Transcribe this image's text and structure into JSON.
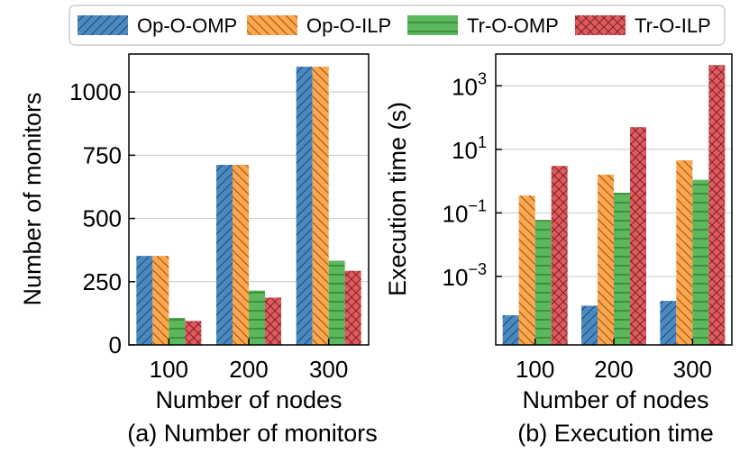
{
  "legend": [
    {
      "name": "Op-O-OMP",
      "color": "#4a8ac0",
      "hatch": "diag-fwd",
      "hatch_color": "#1b3d6b"
    },
    {
      "name": "Op-O-ILP",
      "color": "#ffa64d",
      "hatch": "diag-back",
      "hatch_color": "#7a4a14"
    },
    {
      "name": "Tr-O-OMP",
      "color": "#5cb85c",
      "hatch": "horiz",
      "hatch_color": "#1f5a1f"
    },
    {
      "name": "Tr-O-ILP",
      "color": "#e05a5f",
      "hatch": "cross",
      "hatch_color": "#6e1d20"
    }
  ],
  "chart_data": [
    {
      "type": "bar",
      "title": "(a) Number of monitors",
      "xlabel": "Number of nodes",
      "ylabel": "Number of monitors",
      "categories": [
        "100",
        "200",
        "300"
      ],
      "ylim": [
        0,
        1150
      ],
      "yscale": "linear",
      "yticks": [
        {
          "value": 0,
          "label": "0"
        },
        {
          "value": 250,
          "label": "250"
        },
        {
          "value": 500,
          "label": "500"
        },
        {
          "value": 750,
          "label": "750"
        },
        {
          "value": 1000,
          "label": "1000"
        }
      ],
      "grid": true,
      "series": [
        {
          "name": "Op-O-OMP",
          "values": [
            352,
            712,
            1100
          ]
        },
        {
          "name": "Op-O-ILP",
          "values": [
            352,
            712,
            1100
          ]
        },
        {
          "name": "Tr-O-OMP",
          "values": [
            107,
            215,
            333
          ]
        },
        {
          "name": "Tr-O-ILP",
          "values": [
            95,
            187,
            293
          ]
        }
      ]
    },
    {
      "type": "bar",
      "title": "(b) Execution time",
      "xlabel": "Number of nodes",
      "ylabel": "Execution time (s)",
      "categories": [
        "100",
        "200",
        "300"
      ],
      "ylim": [
        7e-06,
        10000
      ],
      "yscale": "log",
      "yticks": [
        {
          "value": 0.001,
          "base": "10",
          "exp": "−3"
        },
        {
          "value": 0.1,
          "base": "10",
          "exp": "−1"
        },
        {
          "value": 10,
          "base": "10",
          "exp": "1"
        },
        {
          "value": 1000,
          "base": "10",
          "exp": "3"
        }
      ],
      "grid": true,
      "series": [
        {
          "name": "Op-O-OMP",
          "values": [
            6e-05,
            0.00012,
            0.00017
          ]
        },
        {
          "name": "Op-O-ILP",
          "values": [
            0.35,
            1.6,
            4.5
          ]
        },
        {
          "name": "Tr-O-OMP",
          "values": [
            0.06,
            0.43,
            1.1
          ]
        },
        {
          "name": "Tr-O-ILP",
          "values": [
            3.0,
            50,
            4500
          ]
        }
      ]
    }
  ]
}
